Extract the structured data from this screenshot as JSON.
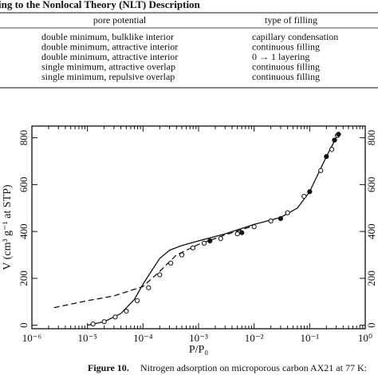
{
  "header": {
    "title": "ing to the Nonlocal Theory (NLT) Description"
  },
  "table": {
    "columns": [
      "pore potential",
      "type of filling"
    ],
    "rows": [
      [
        "double minimum, bulklike interior",
        "capillary condensation"
      ],
      [
        "double minimum, attractive interior",
        "continuous filling"
      ],
      [
        "double minimum, attractive interior",
        "0 → 1 layering"
      ],
      [
        "single minimum, attractive overlap",
        "continuous filling"
      ],
      [
        "single minimum, repulsive overlap",
        "continuous filling"
      ]
    ]
  },
  "chart_data": {
    "type": "scatter",
    "xlabel": "P/P₀",
    "ylabel": "V (cm³ g⁻¹ at STP)",
    "xscale": "log",
    "xlim": [
      1e-06,
      1
    ],
    "ylim": [
      -15,
      850
    ],
    "xticks": [
      {
        "value": 1e-06,
        "label": "10⁻⁶"
      },
      {
        "value": 1e-05,
        "label": "10⁻⁵"
      },
      {
        "value": 0.0001,
        "label": "10⁻⁴"
      },
      {
        "value": 0.001,
        "label": "10⁻³"
      },
      {
        "value": 0.01,
        "label": "10⁻²"
      },
      {
        "value": 0.1,
        "label": "10⁻¹"
      },
      {
        "value": 1,
        "label": "10⁰"
      }
    ],
    "yticks": [
      0,
      200,
      400,
      600,
      800
    ],
    "grid": false,
    "series": [
      {
        "type": "line",
        "color": "#111",
        "dash": false,
        "x": [
          1e-05,
          2e-05,
          4e-05,
          7e-05,
          0.0001,
          0.00015,
          0.0002,
          0.0003,
          0.0005,
          0.001,
          0.003,
          0.01,
          0.03,
          0.06,
          0.1,
          0.2,
          0.33
        ],
        "values": [
          0,
          15,
          50,
          110,
          175,
          240,
          285,
          320,
          340,
          360,
          390,
          430,
          460,
          500,
          570,
          720,
          820
        ]
      },
      {
        "type": "line",
        "color": "#111",
        "dash": true,
        "x": [
          2.5e-06,
          1e-05,
          3e-05,
          0.0001,
          0.0002,
          0.0004,
          0.001,
          0.003,
          0.01
        ],
        "values": [
          75,
          105,
          125,
          165,
          230,
          300,
          345,
          385,
          425
        ]
      },
      {
        "type": "scatter",
        "color": "#111",
        "marker": "open",
        "x": [
          1.26e-05,
          2e-05,
          3.16e-05,
          5e-05,
          7.9e-05,
          0.000126,
          0.0002,
          0.000316,
          0.0005,
          0.00079,
          0.00126,
          0.0025,
          0.005,
          0.01,
          0.02,
          0.04,
          0.079,
          0.158,
          0.25,
          0.316
        ],
        "values": [
          5,
          15,
          35,
          60,
          105,
          160,
          215,
          265,
          300,
          330,
          350,
          370,
          390,
          420,
          445,
          480,
          550,
          660,
          750,
          810
        ]
      },
      {
        "type": "scatter",
        "color": "#111",
        "marker": "filled",
        "x": [
          0.0016,
          0.006,
          0.03,
          0.1,
          0.2,
          0.28,
          0.33
        ],
        "values": [
          360,
          395,
          455,
          570,
          720,
          790,
          815
        ]
      }
    ]
  },
  "caption": {
    "label": "Figure 10.",
    "text": "Nitrogen adsorption on microporous carbon AX21 at 77 K:"
  }
}
